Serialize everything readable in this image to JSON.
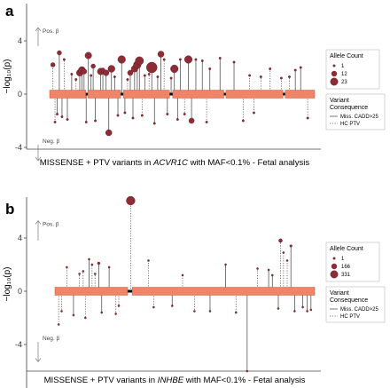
{
  "chart_data": [
    {
      "panel": "a",
      "type": "scatter",
      "gene": "ACVR1C",
      "ylabel": "−log₁₀(p)",
      "ylim": [
        -5,
        7
      ],
      "yticks": [
        -4,
        0,
        4
      ],
      "xlabel_prefix": "MISSENSE + PTV variants in ",
      "xlabel_suffix": " with MAF<0.1% - Fetal analysis",
      "pos_label": "Pos. β",
      "neg_label": "Neg. β",
      "protein_length": 493,
      "domains": [
        [
          0,
          67
        ],
        [
          71,
          132
        ],
        [
          137,
          223
        ],
        [
          229,
          324
        ],
        [
          328,
          434
        ],
        [
          438,
          493
        ]
      ],
      "variants": [
        {
          "pos": 6,
          "y": 2.2,
          "ac": 4,
          "type": "ptv"
        },
        {
          "pos": 10,
          "y": -2.1,
          "ac": 1,
          "type": "ptv"
        },
        {
          "pos": 14,
          "y": -1.5,
          "ac": 1,
          "type": "missense"
        },
        {
          "pos": 18,
          "y": 3.1,
          "ac": 4,
          "type": "missense"
        },
        {
          "pos": 23,
          "y": -1.7,
          "ac": 1,
          "type": "missense"
        },
        {
          "pos": 27,
          "y": 2.6,
          "ac": 1,
          "type": "ptv"
        },
        {
          "pos": 33,
          "y": -1.9,
          "ac": 1,
          "type": "missense"
        },
        {
          "pos": 41,
          "y": 1.5,
          "ac": 1,
          "type": "missense"
        },
        {
          "pos": 49,
          "y": 1.1,
          "ac": 1,
          "type": "ptv"
        },
        {
          "pos": 56,
          "y": 1.6,
          "ac": 9,
          "type": "missense"
        },
        {
          "pos": 60,
          "y": 1.8,
          "ac": 10,
          "type": "missense"
        },
        {
          "pos": 64,
          "y": 1.7,
          "ac": 6,
          "type": "missense"
        },
        {
          "pos": 68,
          "y": -2.1,
          "ac": 1,
          "type": "missense"
        },
        {
          "pos": 72,
          "y": 2.9,
          "ac": 9,
          "type": "missense"
        },
        {
          "pos": 77,
          "y": 1.4,
          "ac": 1,
          "type": "missense"
        },
        {
          "pos": 81,
          "y": 2.1,
          "ac": 4,
          "type": "missense"
        },
        {
          "pos": 85,
          "y": -2.0,
          "ac": 1,
          "type": "missense"
        },
        {
          "pos": 95,
          "y": 1.7,
          "ac": 9,
          "type": "missense"
        },
        {
          "pos": 99,
          "y": 1.8,
          "ac": 4,
          "type": "missense"
        },
        {
          "pos": 105,
          "y": 1.6,
          "ac": 7,
          "type": "missense"
        },
        {
          "pos": 110,
          "y": -2.9,
          "ac": 8,
          "type": "missense"
        },
        {
          "pos": 115,
          "y": 1.9,
          "ac": 10,
          "type": "missense"
        },
        {
          "pos": 121,
          "y": 1.3,
          "ac": 1,
          "type": "missense"
        },
        {
          "pos": 127,
          "y": -1.6,
          "ac": 1,
          "type": "missense"
        },
        {
          "pos": 134,
          "y": 2.6,
          "ac": 12,
          "type": "missense"
        },
        {
          "pos": 140,
          "y": -1.4,
          "ac": 1,
          "type": "missense"
        },
        {
          "pos": 145,
          "y": 1.1,
          "ac": 1,
          "type": "ptv"
        },
        {
          "pos": 150,
          "y": 1.6,
          "ac": 6,
          "type": "missense"
        },
        {
          "pos": 155,
          "y": -1.8,
          "ac": 1,
          "type": "missense"
        },
        {
          "pos": 158,
          "y": 1.9,
          "ac": 9,
          "type": "missense"
        },
        {
          "pos": 163,
          "y": 2.2,
          "ac": 12,
          "type": "missense"
        },
        {
          "pos": 167,
          "y": 2.5,
          "ac": 14,
          "type": "missense"
        },
        {
          "pos": 172,
          "y": -1.6,
          "ac": 1,
          "type": "ptv"
        },
        {
          "pos": 177,
          "y": 1.4,
          "ac": 1,
          "type": "missense"
        },
        {
          "pos": 185,
          "y": 1.5,
          "ac": 1,
          "type": "ptv"
        },
        {
          "pos": 190,
          "y": 2.0,
          "ac": 23,
          "type": "missense"
        },
        {
          "pos": 195,
          "y": -2.2,
          "ac": 1,
          "type": "missense"
        },
        {
          "pos": 201,
          "y": 1.3,
          "ac": 1,
          "type": "missense"
        },
        {
          "pos": 207,
          "y": 3.0,
          "ac": 8,
          "type": "missense"
        },
        {
          "pos": 213,
          "y": 2.6,
          "ac": 1,
          "type": "ptv"
        },
        {
          "pos": 219,
          "y": -1.5,
          "ac": 1,
          "type": "missense"
        },
        {
          "pos": 226,
          "y": 1.2,
          "ac": 1,
          "type": "missense"
        },
        {
          "pos": 232,
          "y": 1.9,
          "ac": 12,
          "type": "missense"
        },
        {
          "pos": 238,
          "y": -1.9,
          "ac": 1,
          "type": "missense"
        },
        {
          "pos": 243,
          "y": 2.6,
          "ac": 1,
          "type": "missense"
        },
        {
          "pos": 251,
          "y": -1.5,
          "ac": 1,
          "type": "ptv"
        },
        {
          "pos": 258,
          "y": 2.6,
          "ac": 12,
          "type": "missense"
        },
        {
          "pos": 264,
          "y": -2.0,
          "ac": 6,
          "type": "missense"
        },
        {
          "pos": 272,
          "y": 2.6,
          "ac": 1,
          "type": "missense"
        },
        {
          "pos": 284,
          "y": 2.5,
          "ac": 1,
          "type": "missense"
        },
        {
          "pos": 292,
          "y": -2.1,
          "ac": 1,
          "type": "ptv"
        },
        {
          "pos": 298,
          "y": 1.9,
          "ac": 1,
          "type": "missense"
        },
        {
          "pos": 317,
          "y": 2.7,
          "ac": 1,
          "type": "missense"
        },
        {
          "pos": 343,
          "y": 2.4,
          "ac": 1,
          "type": "missense"
        },
        {
          "pos": 360,
          "y": -2.0,
          "ac": 1,
          "type": "ptv"
        },
        {
          "pos": 372,
          "y": 1.4,
          "ac": 1,
          "type": "ptv"
        },
        {
          "pos": 380,
          "y": -1.4,
          "ac": 1,
          "type": "ptv"
        },
        {
          "pos": 393,
          "y": 1.3,
          "ac": 1,
          "type": "ptv"
        },
        {
          "pos": 410,
          "y": 1.9,
          "ac": 1,
          "type": "ptv"
        },
        {
          "pos": 431,
          "y": 1.2,
          "ac": 1,
          "type": "ptv"
        },
        {
          "pos": 446,
          "y": 1.3,
          "ac": 1,
          "type": "ptv"
        },
        {
          "pos": 457,
          "y": 1.8,
          "ac": 1,
          "type": "missense"
        },
        {
          "pos": 467,
          "y": 2.0,
          "ac": 1,
          "type": "missense"
        },
        {
          "pos": 480,
          "y": -1.8,
          "ac": 1,
          "type": "ptv"
        }
      ],
      "legend": {
        "size_title": "Allele Count",
        "sizes": [
          {
            "label": "1",
            "ac": 1
          },
          {
            "label": "12",
            "ac": 12
          },
          {
            "label": "23",
            "ac": 23
          }
        ],
        "line_title_1": "Variant",
        "line_title_2": "Consequence",
        "lines": [
          {
            "label": "Miss. CADD>25",
            "type": "missense"
          },
          {
            "label": "HC PTV",
            "type": "ptv"
          }
        ]
      }
    },
    {
      "panel": "b",
      "type": "scatter",
      "gene": "INHBE",
      "ylabel": "−log₁₀(p)",
      "ylim": [
        -7,
        8
      ],
      "yticks": [
        -4,
        0,
        4
      ],
      "xlabel_prefix": "MISSENSE + PTV variants in ",
      "xlabel_suffix": " with MAF<0.1% - Fetal analysis",
      "pos_label": "Pos. β",
      "neg_label": "Neg. β",
      "protein_length": 350,
      "domains": [
        [
          0,
          98
        ],
        [
          104,
          350
        ]
      ],
      "variants": [
        {
          "pos": 5,
          "y": -2.5,
          "ac": 1,
          "type": "ptv"
        },
        {
          "pos": 9,
          "y": -1.5,
          "ac": 1,
          "type": "ptv"
        },
        {
          "pos": 16,
          "y": 1.8,
          "ac": 1,
          "type": "ptv"
        },
        {
          "pos": 25,
          "y": -1.8,
          "ac": 1,
          "type": "missense"
        },
        {
          "pos": 33,
          "y": 1.3,
          "ac": 1,
          "type": "ptv"
        },
        {
          "pos": 38,
          "y": 1.5,
          "ac": 1,
          "type": "ptv"
        },
        {
          "pos": 41,
          "y": -2.0,
          "ac": 1,
          "type": "ptv"
        },
        {
          "pos": 46,
          "y": 2.4,
          "ac": 1,
          "type": "missense"
        },
        {
          "pos": 50,
          "y": 2.0,
          "ac": 1,
          "type": "ptv"
        },
        {
          "pos": 54,
          "y": 1.3,
          "ac": 1,
          "type": "ptv"
        },
        {
          "pos": 59,
          "y": 2.1,
          "ac": 30,
          "type": "missense"
        },
        {
          "pos": 63,
          "y": -1.6,
          "ac": 1,
          "type": "missense"
        },
        {
          "pos": 73,
          "y": 1.8,
          "ac": 1,
          "type": "missense"
        },
        {
          "pos": 82,
          "y": -1.7,
          "ac": 1,
          "type": "ptv"
        },
        {
          "pos": 86,
          "y": -1.1,
          "ac": 1,
          "type": "ptv"
        },
        {
          "pos": 102,
          "y": 6.8,
          "ac": 331,
          "type": "ptv"
        },
        {
          "pos": 126,
          "y": 2.3,
          "ac": 1,
          "type": "ptv"
        },
        {
          "pos": 133,
          "y": -1.2,
          "ac": 1,
          "type": "ptv"
        },
        {
          "pos": 158,
          "y": -1.1,
          "ac": 1,
          "type": "missense"
        },
        {
          "pos": 172,
          "y": 1.2,
          "ac": 1,
          "type": "ptv"
        },
        {
          "pos": 188,
          "y": -1.5,
          "ac": 1,
          "type": "ptv"
        },
        {
          "pos": 209,
          "y": -1.5,
          "ac": 1,
          "type": "missense"
        },
        {
          "pos": 230,
          "y": 2.0,
          "ac": 1,
          "type": "missense"
        },
        {
          "pos": 244,
          "y": -1.6,
          "ac": 1,
          "type": "ptv"
        },
        {
          "pos": 259,
          "y": -6.0,
          "ac": 1,
          "type": "missense"
        },
        {
          "pos": 273,
          "y": 1.7,
          "ac": 1,
          "type": "ptv"
        },
        {
          "pos": 288,
          "y": 1.6,
          "ac": 1,
          "type": "missense"
        },
        {
          "pos": 293,
          "y": 1.2,
          "ac": 1,
          "type": "missense"
        },
        {
          "pos": 301,
          "y": -1.3,
          "ac": 1,
          "type": "missense"
        },
        {
          "pos": 304,
          "y": 3.8,
          "ac": 60,
          "type": "ptv"
        },
        {
          "pos": 308,
          "y": 2.9,
          "ac": 1,
          "type": "ptv"
        },
        {
          "pos": 313,
          "y": 2.3,
          "ac": 1,
          "type": "ptv"
        },
        {
          "pos": 318,
          "y": 3.4,
          "ac": 25,
          "type": "missense"
        },
        {
          "pos": 323,
          "y": -1.5,
          "ac": 1,
          "type": "missense"
        },
        {
          "pos": 334,
          "y": -1.2,
          "ac": 1,
          "type": "missense"
        },
        {
          "pos": 340,
          "y": -1.5,
          "ac": 1,
          "type": "missense"
        },
        {
          "pos": 345,
          "y": -1.4,
          "ac": 1,
          "type": "missense"
        }
      ],
      "legend": {
        "size_title": "Allele Count",
        "sizes": [
          {
            "label": "1",
            "ac": 1
          },
          {
            "label": "166",
            "ac": 166
          },
          {
            "label": "331",
            "ac": 331
          }
        ],
        "line_title_1": "Variant",
        "line_title_2": "Consequence",
        "lines": [
          {
            "label": "Miss. CADD>25",
            "type": "missense"
          },
          {
            "label": "HC PTV",
            "type": "ptv"
          }
        ]
      }
    }
  ],
  "colors": {
    "domain_fill": "#F08468",
    "domain_stroke": "#B24A32",
    "linker": "#000000",
    "point_fill": "#8E2C35",
    "point_stroke": "#5A1820",
    "stem": "#555555",
    "axis": "#444444",
    "legend_border": "#BBBBBB"
  }
}
